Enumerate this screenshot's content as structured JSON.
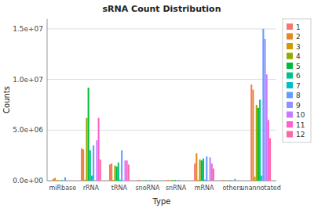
{
  "chart_data": {
    "type": "bar",
    "title": "sRNA Count Distribution",
    "x_label": "Type",
    "y_label": "Counts",
    "categories": [
      "miRbase",
      "rRNA",
      "tRNA",
      "snoRNA",
      "snRNA",
      "mRNA",
      "others",
      "unannotated"
    ],
    "series": [
      {
        "name": "1",
        "color": "#F8766D",
        "values": [
          180000,
          3200000,
          1600000,
          80000,
          30000,
          1700000,
          80000,
          9500000
        ]
      },
      {
        "name": "2",
        "color": "#E88526",
        "values": [
          280000,
          3100000,
          1700000,
          50000,
          80000,
          2700000,
          40000,
          9000000
        ]
      },
      {
        "name": "3",
        "color": "#D09A00",
        "values": [
          60000,
          100000,
          80000,
          0,
          0,
          80000,
          0,
          400000
        ]
      },
      {
        "name": "4",
        "color": "#93AA00",
        "values": [
          40000,
          6200000,
          1500000,
          30000,
          80000,
          2100000,
          30000,
          7500000
        ]
      },
      {
        "name": "5",
        "color": "#00BA38",
        "values": [
          0,
          9200000,
          1400000,
          30000,
          30000,
          2000000,
          30000,
          7200000
        ]
      },
      {
        "name": "6",
        "color": "#00C08B",
        "values": [
          80000,
          3000000,
          1800000,
          30000,
          80000,
          2200000,
          30000,
          8000000
        ]
      },
      {
        "name": "7",
        "color": "#00BFC4",
        "values": [
          0,
          500000,
          100000,
          0,
          0,
          100000,
          0,
          500000
        ]
      },
      {
        "name": "8",
        "color": "#619CFF",
        "values": [
          340000,
          3500000,
          3000000,
          80000,
          80000,
          2400000,
          180000,
          15000000
        ]
      },
      {
        "name": "9",
        "color": "#9590FF",
        "values": [
          0,
          0,
          0,
          0,
          0,
          0,
          0,
          14000000
        ]
      },
      {
        "name": "10",
        "color": "#C77CFF",
        "values": [
          0,
          4000000,
          2000000,
          0,
          0,
          2300000,
          0,
          10500000
        ]
      },
      {
        "name": "11",
        "color": "#FF61CC",
        "values": [
          0,
          6200000,
          2000000,
          0,
          0,
          1700000,
          0,
          6000000
        ]
      },
      {
        "name": "12",
        "color": "#FF67A4",
        "values": [
          0,
          2100000,
          1600000,
          0,
          0,
          1200000,
          0,
          4200000
        ]
      }
    ],
    "ylim": [
      0,
      16000000
    ],
    "yticks": [
      {
        "value": 0,
        "label": "0.0e+00"
      },
      {
        "value": 5000000,
        "label": "5.0e+06"
      },
      {
        "value": 10000000,
        "label": "1.0e+07"
      },
      {
        "value": 15000000,
        "label": "1.5e+07"
      }
    ],
    "grid": true,
    "legend": "right"
  }
}
